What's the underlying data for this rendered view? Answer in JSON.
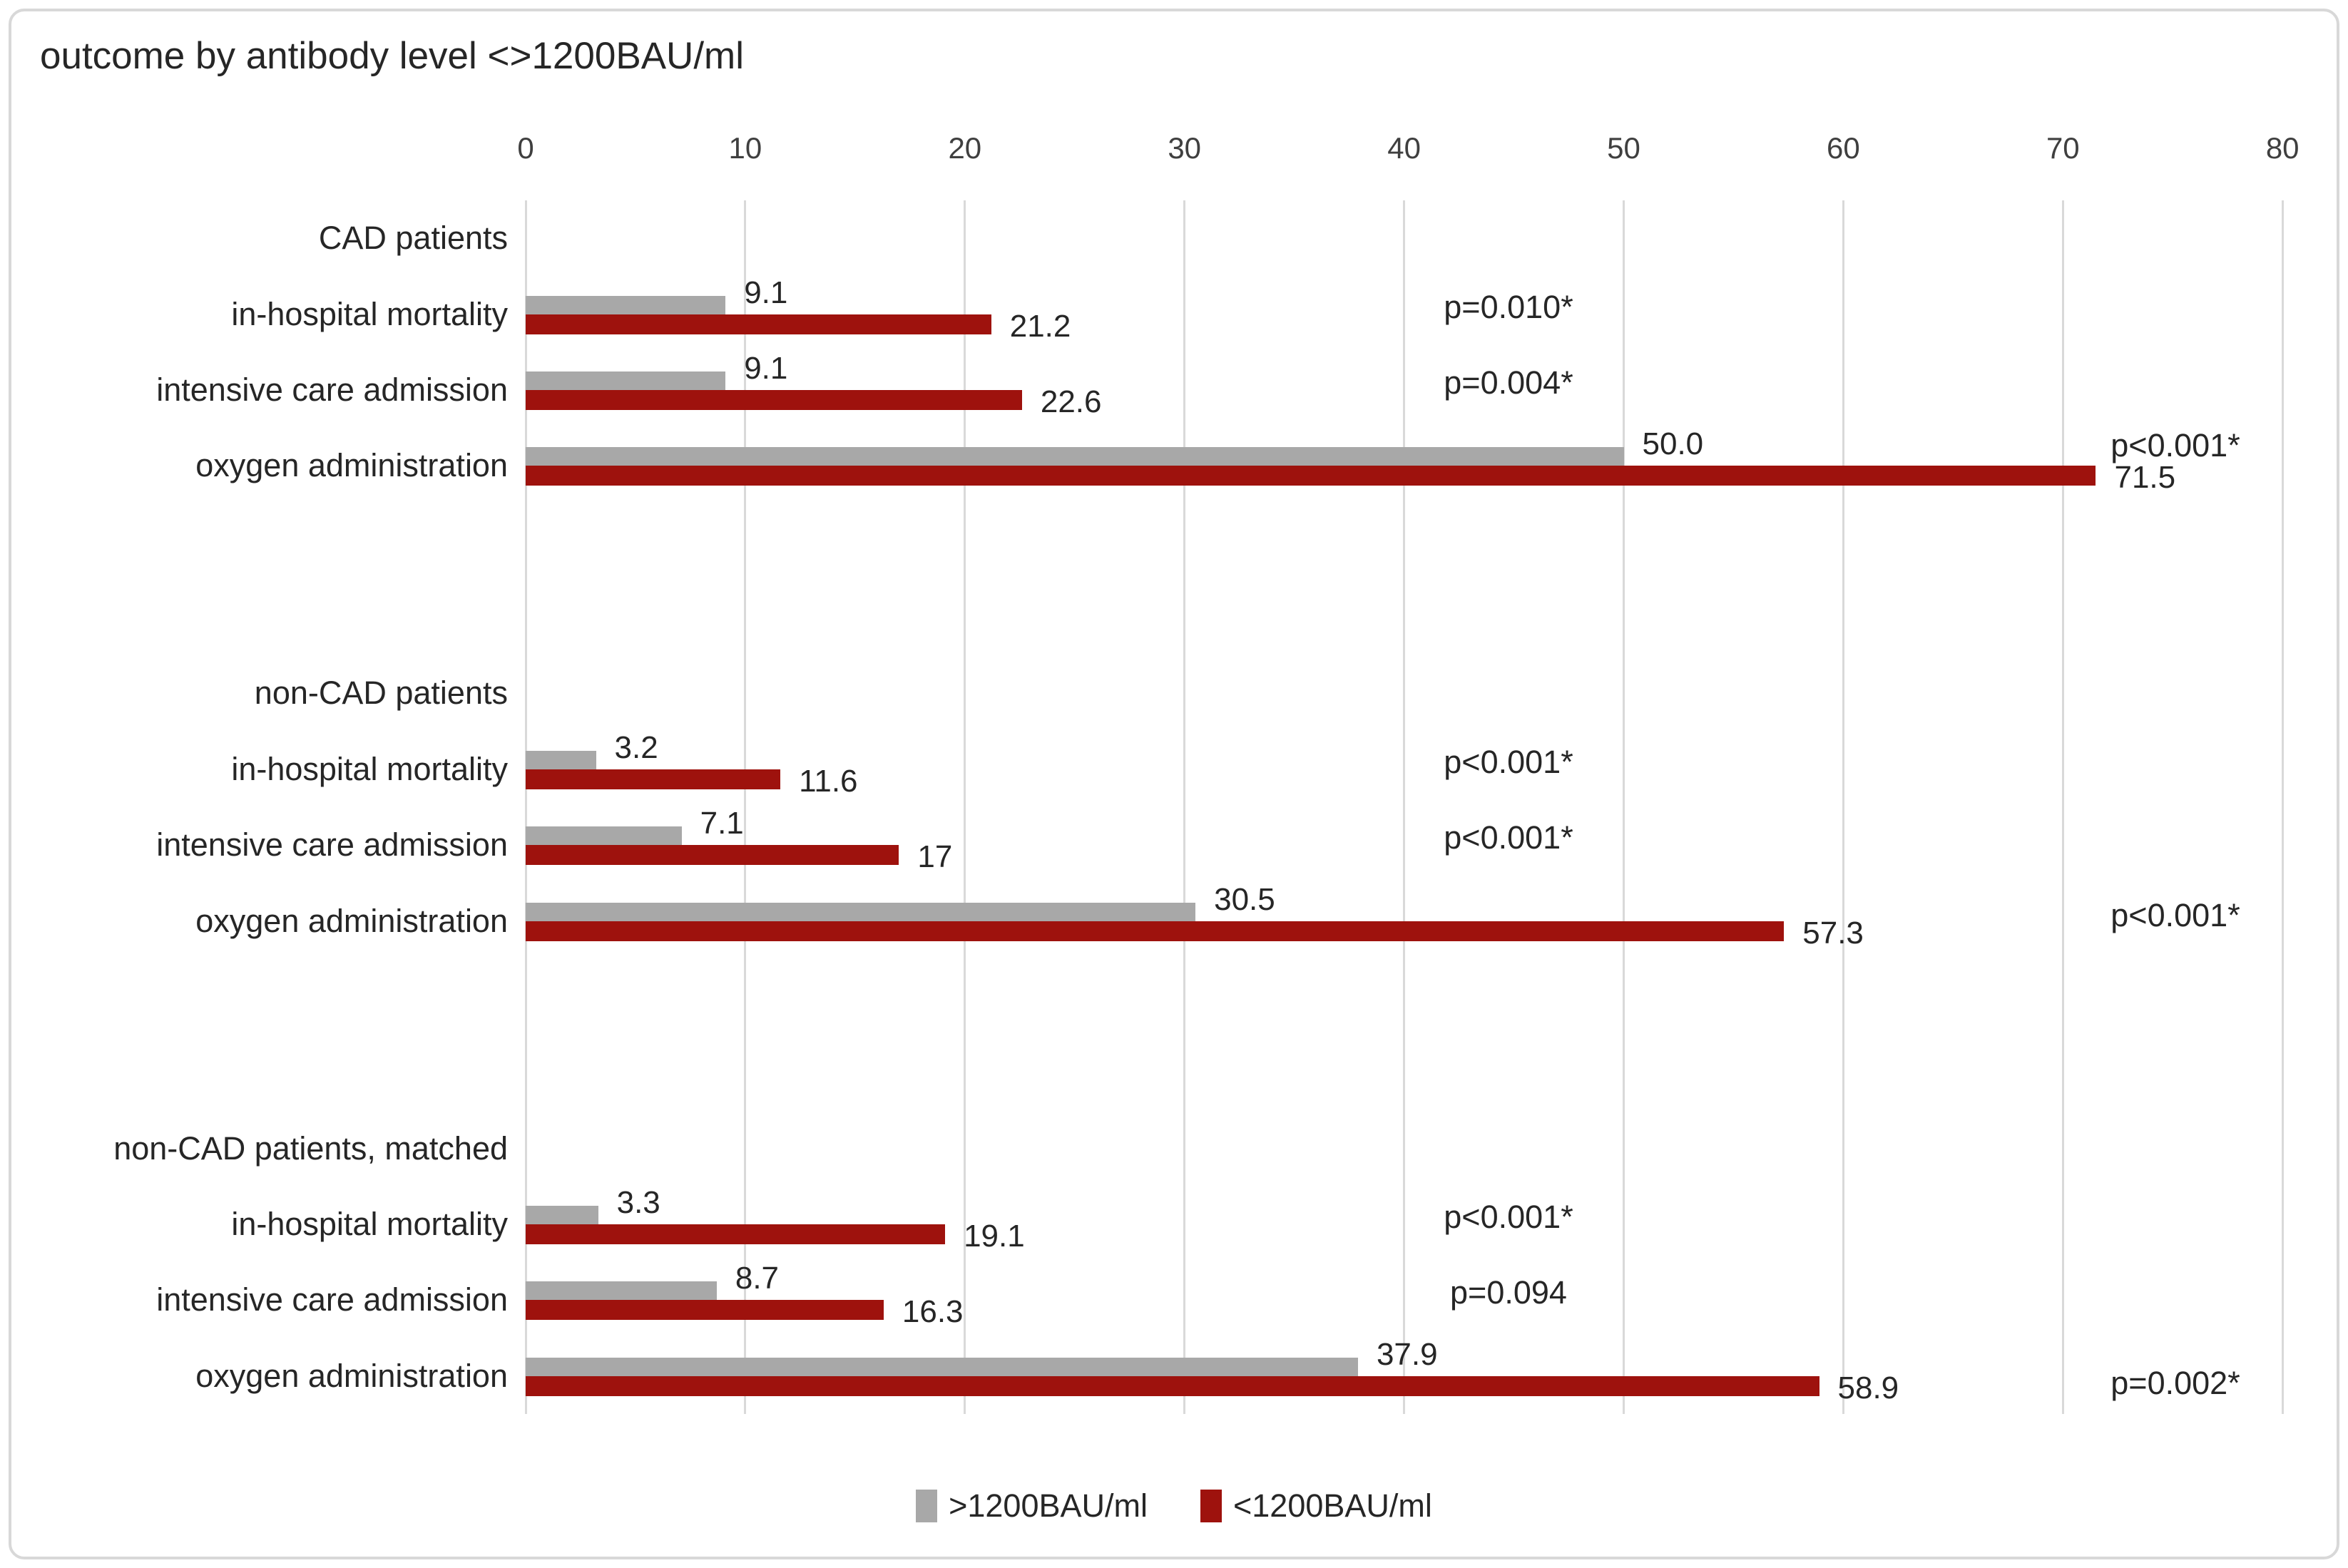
{
  "title": "outcome by antibody level <>1200BAU/ml",
  "colors": {
    "gray": "#a8a8a8",
    "red": "#9e120d",
    "gridline": "#d9d9d9",
    "text": "#262626",
    "tick_text": "#3f3f3f",
    "frame_border": "#d8d8d8"
  },
  "legend": {
    "items": [
      {
        "label": ">1200BAU/ml",
        "color_key": "gray"
      },
      {
        "label": "<1200BAU/ml",
        "color_key": "red"
      }
    ]
  },
  "chart_data": {
    "type": "bar",
    "orientation": "horizontal",
    "title": "outcome by antibody level <>1200BAU/ml",
    "xlabel": "",
    "ylabel": "",
    "xlim": [
      0,
      80
    ],
    "x_ticks": [
      0,
      10,
      20,
      30,
      40,
      50,
      60,
      70,
      80
    ],
    "grid": true,
    "legend_position": "bottom",
    "series_names": [
      ">1200BAU/ml",
      "<1200BAU/ml"
    ],
    "groups": [
      {
        "label": "CAD patients",
        "rows": [
          {
            "label": "in-hospital mortality",
            "gray": 9.1,
            "red": 21.2,
            "gray_label": "9.1",
            "red_label": "21.2",
            "p": "p=0.010*",
            "p_position": "mid"
          },
          {
            "label": "intensive care admission",
            "gray": 9.1,
            "red": 22.6,
            "gray_label": "9.1",
            "red_label": "22.6",
            "p": "p=0.004*",
            "p_position": "mid"
          },
          {
            "label": "oxygen administration",
            "gray": 50.0,
            "red": 71.5,
            "gray_label": "50.0",
            "red_label": "71.5",
            "p": "p<0.001*",
            "p_position": "right"
          }
        ]
      },
      {
        "label": "non-CAD patients",
        "rows": [
          {
            "label": "in-hospital mortality",
            "gray": 3.2,
            "red": 11.6,
            "gray_label": "3.2",
            "red_label": "11.6",
            "p": "p<0.001*",
            "p_position": "mid"
          },
          {
            "label": "intensive care admission",
            "gray": 7.1,
            "red": 17,
            "gray_label": "7.1",
            "red_label": "17",
            "p": "p<0.001*",
            "p_position": "mid"
          },
          {
            "label": "oxygen administration",
            "gray": 30.5,
            "red": 57.3,
            "gray_label": "30.5",
            "red_label": "57.3",
            "p": "p<0.001*",
            "p_position": "right"
          }
        ]
      },
      {
        "label": "non-CAD patients, matched",
        "rows": [
          {
            "label": "in-hospital mortality",
            "gray": 3.3,
            "red": 19.1,
            "gray_label": "3.3",
            "red_label": "19.1",
            "p": "p<0.001*",
            "p_position": "mid"
          },
          {
            "label": "intensive care admission",
            "gray": 8.7,
            "red": 16.3,
            "gray_label": "8.7",
            "red_label": "16.3",
            "p": "p=0.094",
            "p_position": "mid"
          },
          {
            "label": "oxygen administration",
            "gray": 37.9,
            "red": 58.9,
            "gray_label": "37.9",
            "red_label": "58.9",
            "p": "p=0.002*",
            "p_position": "right"
          }
        ]
      }
    ]
  }
}
